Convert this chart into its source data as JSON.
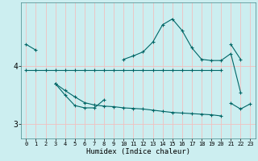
{
  "xlabel": "Humidex (Indice chaleur)",
  "bg_color": "#cceef0",
  "grid_color": "#f0c0c0",
  "line_color": "#006666",
  "x": [
    0,
    1,
    2,
    3,
    4,
    5,
    6,
    7,
    8,
    9,
    10,
    11,
    12,
    13,
    14,
    15,
    16,
    17,
    18,
    19,
    20,
    21,
    22,
    23
  ],
  "line1": [
    4.38,
    4.28,
    null,
    null,
    null,
    null,
    null,
    null,
    null,
    null,
    4.12,
    4.18,
    4.25,
    4.42,
    4.72,
    4.82,
    4.62,
    4.32,
    4.12,
    4.1,
    4.1,
    4.22,
    3.55,
    null
  ],
  "line2": [
    null,
    null,
    null,
    null,
    null,
    null,
    null,
    null,
    null,
    null,
    null,
    null,
    null,
    null,
    null,
    null,
    null,
    null,
    null,
    null,
    null,
    4.38,
    4.12,
    null
  ],
  "line3": [
    3.93,
    3.93,
    3.93,
    3.93,
    3.93,
    3.93,
    3.93,
    3.93,
    3.93,
    3.93,
    3.93,
    3.93,
    3.93,
    3.93,
    3.93,
    3.93,
    3.93,
    3.93,
    3.93,
    3.93,
    3.93,
    null,
    null,
    null
  ],
  "line4_upper": [
    null,
    null,
    null,
    3.7,
    3.5,
    3.32,
    3.28,
    3.28,
    3.42,
    null,
    null,
    null,
    null,
    null,
    null,
    null,
    null,
    null,
    null,
    null,
    null,
    null,
    null,
    null
  ],
  "line4_lower": [
    null,
    null,
    null,
    3.7,
    3.58,
    3.47,
    3.37,
    3.33,
    3.31,
    3.3,
    3.28,
    3.27,
    3.26,
    3.24,
    3.22,
    3.2,
    3.19,
    3.18,
    3.17,
    3.16,
    3.14,
    null,
    null,
    null
  ],
  "line5": [
    null,
    null,
    null,
    null,
    null,
    null,
    null,
    null,
    null,
    null,
    null,
    null,
    null,
    null,
    null,
    null,
    null,
    null,
    null,
    null,
    null,
    3.36,
    3.26,
    3.35
  ],
  "ylim": [
    2.75,
    5.1
  ],
  "yticks": [
    3,
    4
  ],
  "xlim": [
    -0.5,
    23.5
  ]
}
